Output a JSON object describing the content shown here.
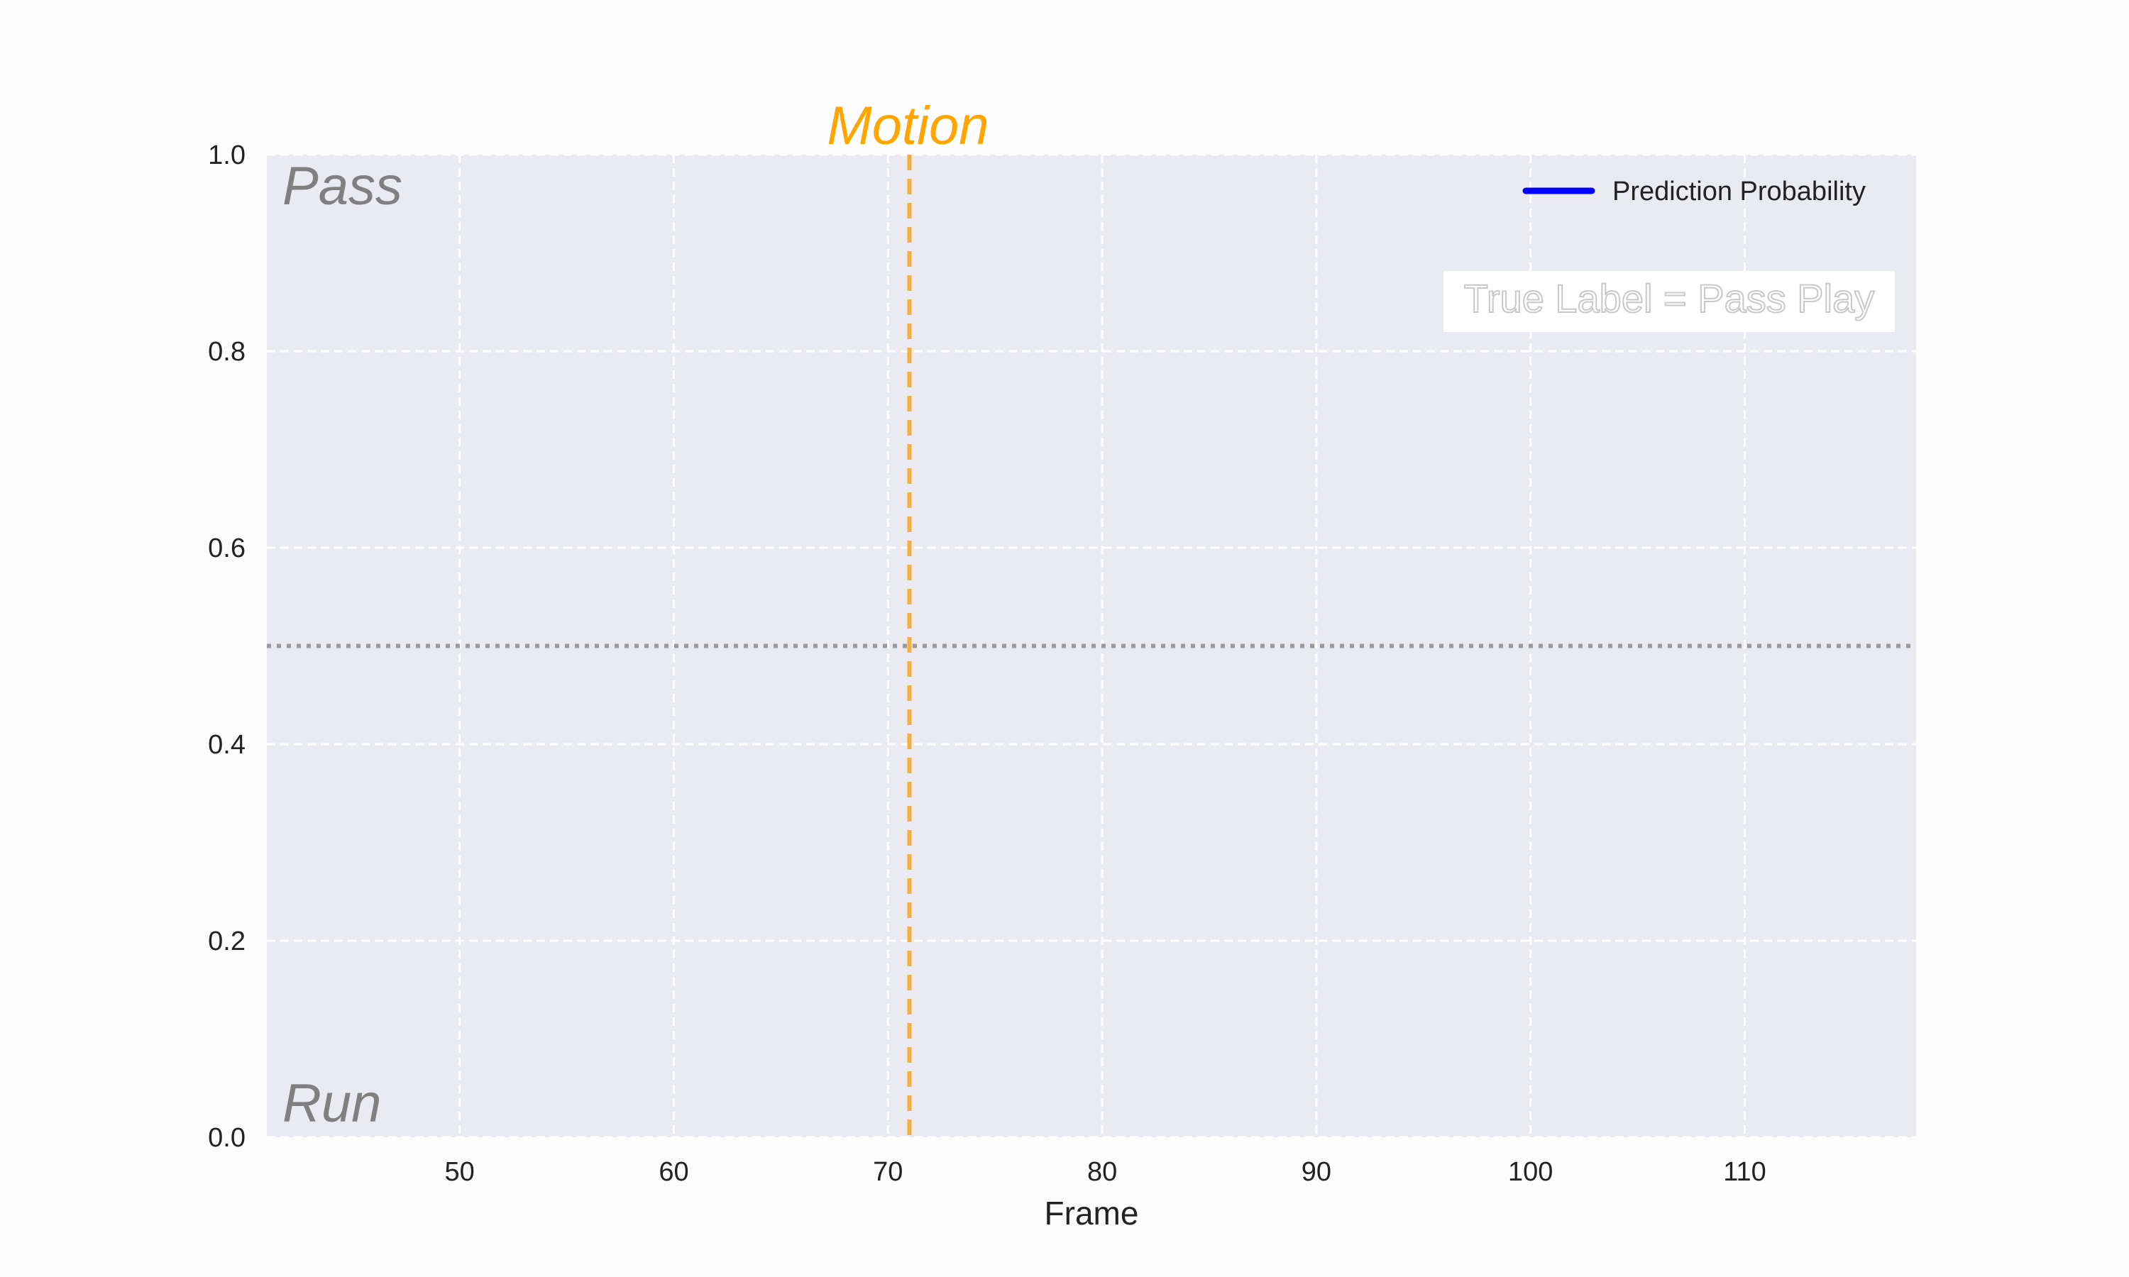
{
  "chart_data": {
    "type": "line",
    "title": "",
    "xlabel": "Frame",
    "ylabel": "",
    "xlim": [
      41,
      118
    ],
    "ylim": [
      0,
      1
    ],
    "x_ticks": [
      50,
      60,
      70,
      80,
      90,
      100,
      110
    ],
    "x_tick_labels": [
      "50",
      "60",
      "70",
      "80",
      "90",
      "100",
      "110"
    ],
    "y_ticks": [
      0,
      0.2,
      0.4,
      0.6,
      0.8,
      1
    ],
    "y_tick_labels": [
      "0.0",
      "0.2",
      "0.4",
      "0.6",
      "0.8",
      "1.0"
    ],
    "grid": true,
    "series": [
      {
        "name": "Prediction Probability",
        "color": "#0000ff",
        "x": [],
        "values": []
      }
    ],
    "threshold_line": {
      "y": 0.5,
      "style": "dotted",
      "color": "#999999"
    },
    "event_line": {
      "x": 71,
      "label": "Motion",
      "color": "#f5a623",
      "style": "dashed"
    },
    "annotations": {
      "top_left": "Pass",
      "bottom_left": "Run",
      "true_label": "True Label = Pass Play"
    },
    "legend": {
      "placement": "top-right"
    },
    "colors": {
      "plot_background": "#eaeaf1",
      "grid": "#ffffff",
      "motion_text": "#ffa500"
    }
  }
}
